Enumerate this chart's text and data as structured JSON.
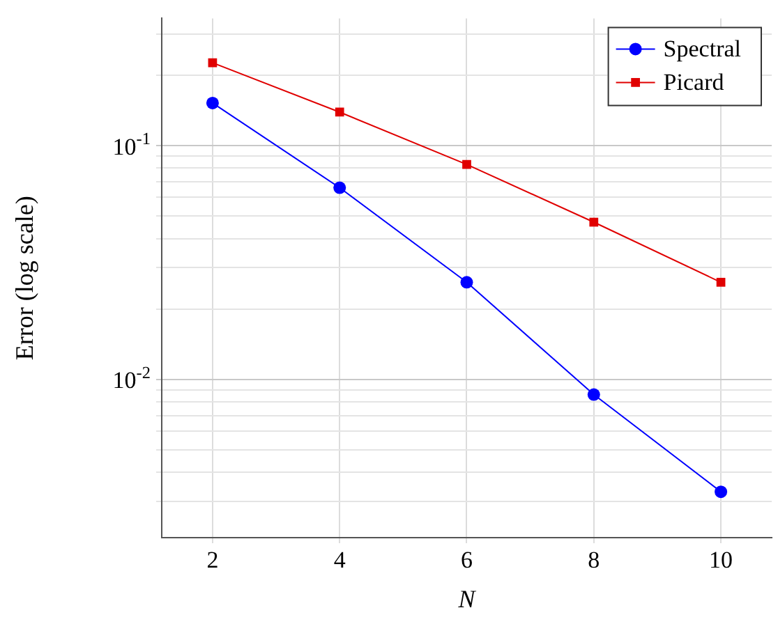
{
  "chart_data": {
    "type": "line",
    "xlabel": "N",
    "ylabel": "Error (log scale)",
    "log": "y",
    "grid": true,
    "legend": "top right",
    "x": [
      2,
      4,
      6,
      8,
      10
    ],
    "xlim": [
      1.2,
      10.8
    ],
    "xticks": [
      2,
      4,
      6,
      8,
      10
    ],
    "ylim": [
      0.0021,
      0.35
    ],
    "yticks": [
      {
        "value": 0.003,
        "label": null
      },
      {
        "value": 0.004,
        "label": null
      },
      {
        "value": 0.005,
        "label": null
      },
      {
        "value": 0.006,
        "label": null
      },
      {
        "value": 0.007,
        "label": null
      },
      {
        "value": 0.008,
        "label": null
      },
      {
        "value": 0.009,
        "label": null
      },
      {
        "value": 0.01,
        "label": "10$^{-2}$"
      },
      {
        "value": 0.02,
        "label": null
      },
      {
        "value": 0.03,
        "label": null
      },
      {
        "value": 0.04,
        "label": null
      },
      {
        "value": 0.05,
        "label": null
      },
      {
        "value": 0.06,
        "label": null
      },
      {
        "value": 0.07,
        "label": null
      },
      {
        "value": 0.08,
        "label": null
      },
      {
        "value": 0.09,
        "label": null
      },
      {
        "value": 0.1,
        "label": "10$^{-1}$"
      },
      {
        "value": 0.2,
        "label": null
      },
      {
        "value": 0.3,
        "label": null
      }
    ],
    "series": [
      {
        "name": "Spectral",
        "color": "#0000ff",
        "marker": "circle",
        "values": [
          0.152,
          0.066,
          0.026,
          0.0086,
          0.0033
        ]
      },
      {
        "name": "Picard",
        "color": "#e00000",
        "marker": "square",
        "values": [
          0.226,
          0.139,
          0.083,
          0.047,
          0.026
        ]
      }
    ]
  }
}
